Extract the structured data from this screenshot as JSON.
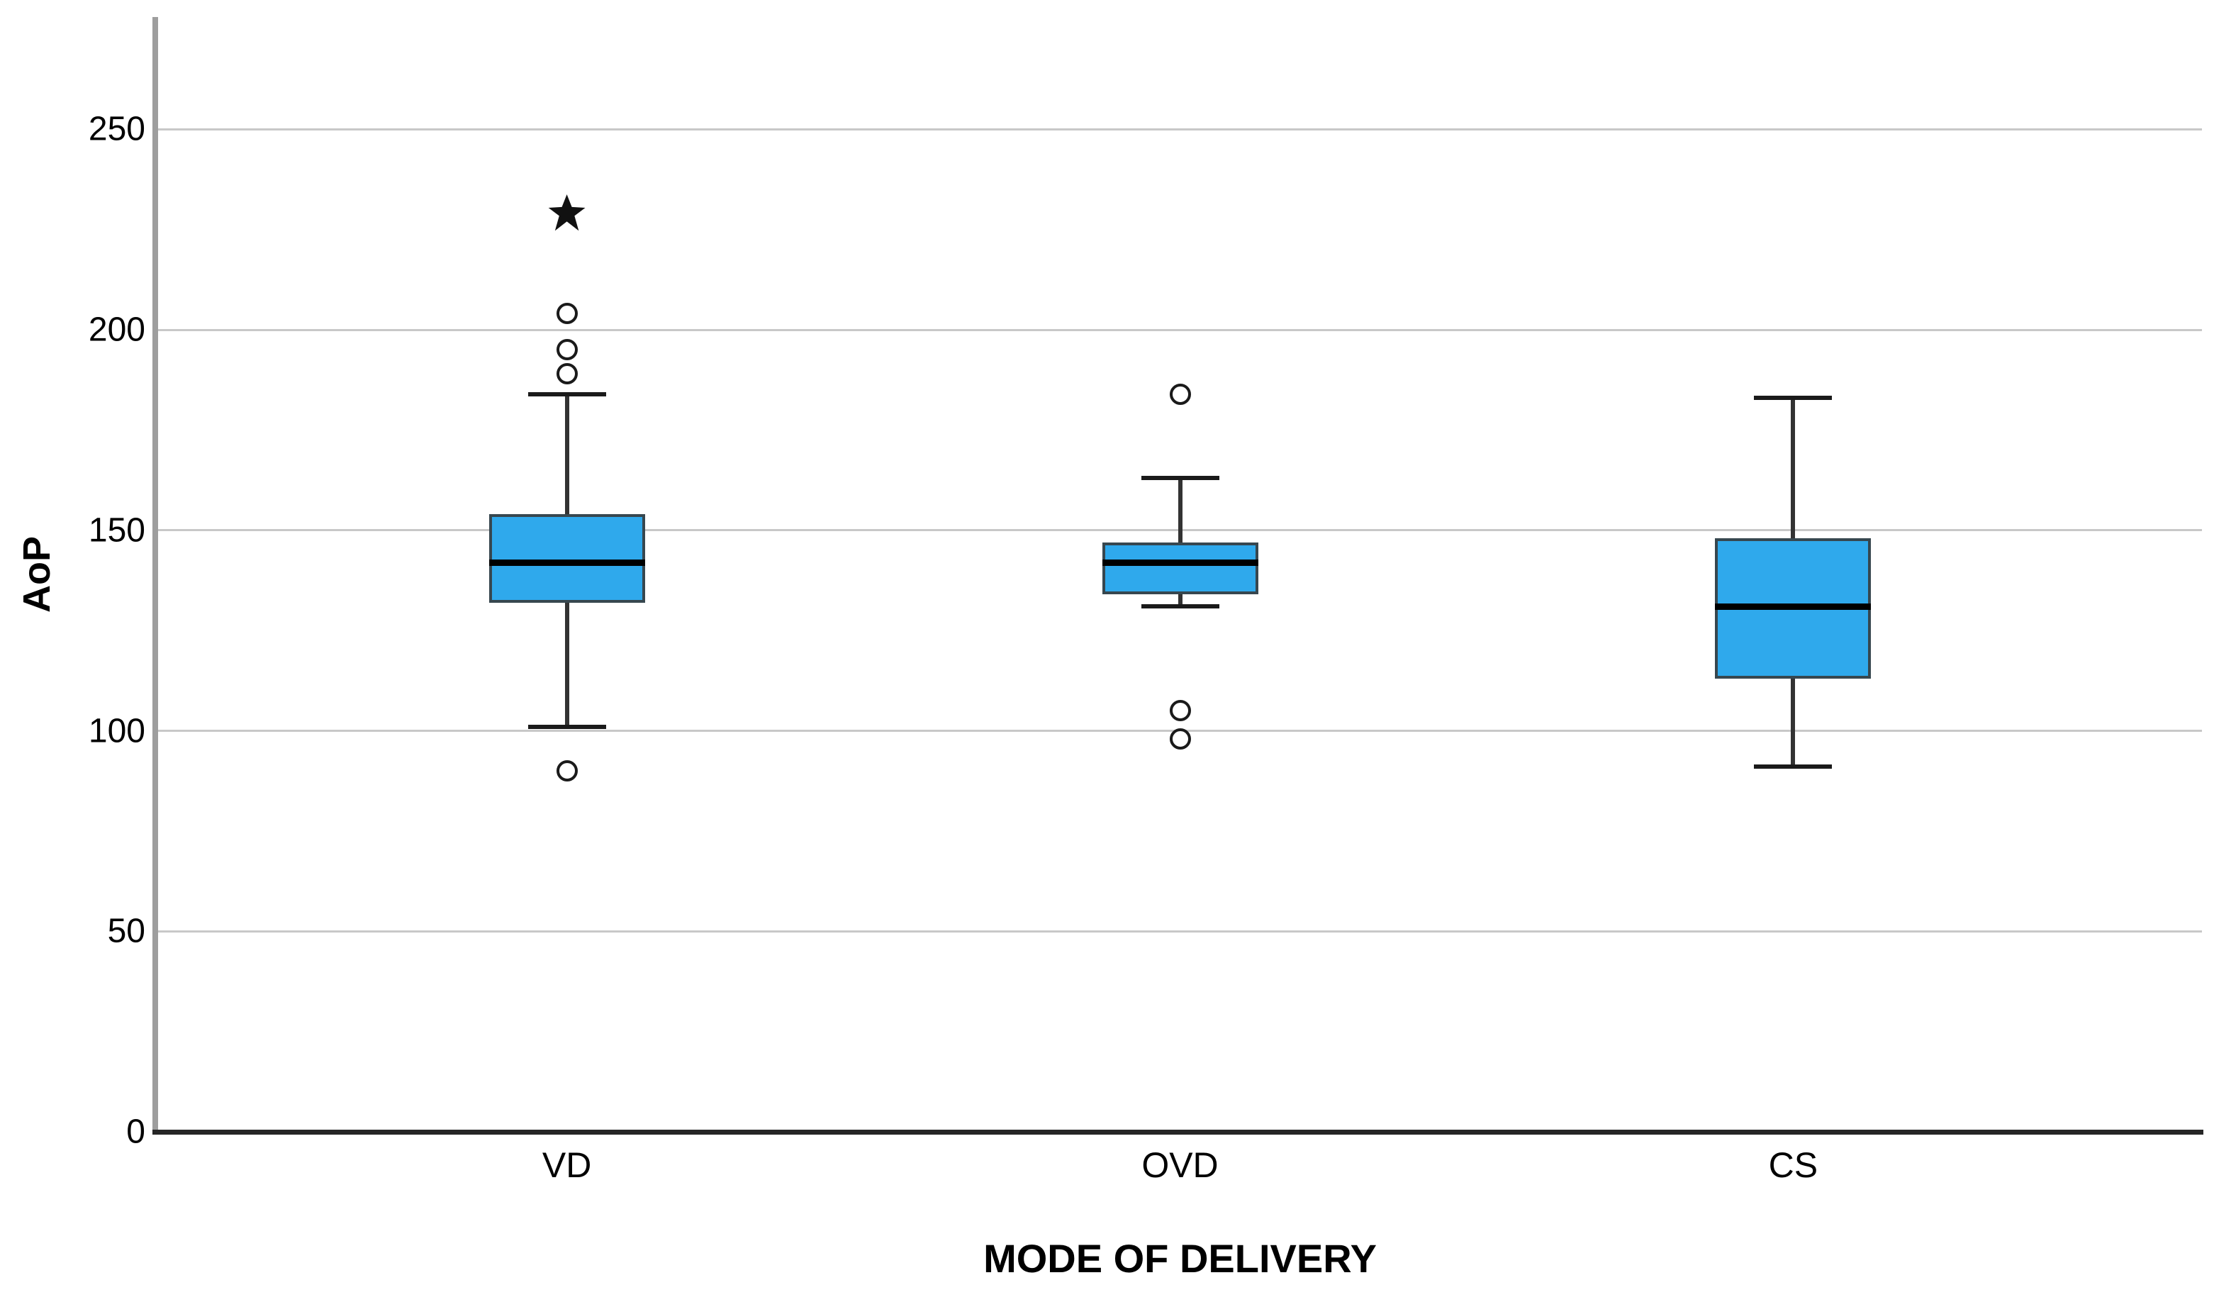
{
  "chart_data": {
    "type": "box",
    "title": "",
    "ylabel": "AoP",
    "xlabel": "MODE OF DELIVERY",
    "ylim": [
      0,
      278
    ],
    "yticks": [
      0,
      50,
      100,
      150,
      200,
      250
    ],
    "grid": "horizontal",
    "legend": "none",
    "categories": [
      "VD",
      "OVD",
      "CS"
    ],
    "series": [
      {
        "label": "VD",
        "whisker_low": 101,
        "q1": 132,
        "median": 142,
        "q3": 154,
        "whisker_high": 184,
        "outliers": [
          204,
          195,
          189,
          90
        ],
        "extremes": [
          229
        ]
      },
      {
        "label": "OVD",
        "whisker_low": 131,
        "q1": 134,
        "median": 142,
        "q3": 147,
        "whisker_high": 163,
        "outliers": [
          184,
          105,
          98
        ],
        "extremes": []
      },
      {
        "label": "CS",
        "whisker_low": 91,
        "q1": 113,
        "median": 131,
        "q3": 148,
        "whisker_high": 183,
        "outliers": [],
        "extremes": []
      }
    ],
    "colors": {
      "box_fill": "#2FA9EC",
      "box_border": "#37474F",
      "median": "#000000",
      "whisker": "#333333",
      "cap": "#1a1a1a",
      "gridline": "#c8c8c8",
      "x_axis": "#262626",
      "y_axis": "#9e9e9e",
      "outlier_stroke": "#1a1a1a",
      "background": "#ffffff"
    }
  }
}
